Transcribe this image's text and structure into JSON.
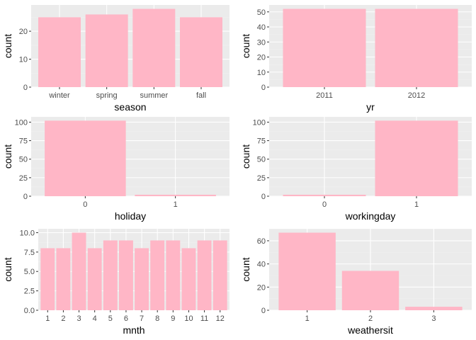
{
  "colors": {
    "bar": "#ffb6c6",
    "panel": "#ebebeb",
    "grid": "#ffffff"
  },
  "chart_data": [
    {
      "type": "bar",
      "categories": [
        "winter",
        "spring",
        "summer",
        "fall"
      ],
      "values": [
        25,
        26,
        28,
        25
      ],
      "xlabel": "season",
      "ylabel": "count",
      "yticks": [
        0,
        10,
        20
      ],
      "ylim": [
        0,
        29.4
      ]
    },
    {
      "type": "bar",
      "categories": [
        "2011",
        "2012"
      ],
      "values": [
        52,
        52
      ],
      "xlabel": "yr",
      "ylabel": "count",
      "yticks": [
        0,
        10,
        20,
        30,
        40,
        50
      ],
      "ylim": [
        0,
        54.6
      ]
    },
    {
      "type": "bar",
      "categories": [
        "0",
        "1"
      ],
      "values": [
        102,
        2
      ],
      "xlabel": "holiday",
      "ylabel": "count",
      "yticks": [
        0,
        25,
        50,
        75,
        100
      ],
      "ylim": [
        0,
        107.1
      ]
    },
    {
      "type": "bar",
      "categories": [
        "0",
        "1"
      ],
      "values": [
        2,
        102
      ],
      "xlabel": "workingday",
      "ylabel": "count",
      "yticks": [
        0,
        25,
        50,
        75,
        100
      ],
      "ylim": [
        0,
        107.1
      ]
    },
    {
      "type": "bar",
      "categories": [
        "1",
        "2",
        "3",
        "4",
        "5",
        "6",
        "7",
        "8",
        "9",
        "10",
        "11",
        "12"
      ],
      "values": [
        8,
        8,
        10,
        8,
        9,
        9,
        8,
        9,
        9,
        8,
        9,
        9
      ],
      "xlabel": "mnth",
      "ylabel": "count",
      "yticks": [
        0.0,
        2.5,
        5.0,
        7.5,
        10.0
      ],
      "ylim": [
        0,
        10.5
      ]
    },
    {
      "type": "bar",
      "categories": [
        "1",
        "2",
        "3"
      ],
      "values": [
        67,
        34,
        3
      ],
      "xlabel": "weathersit",
      "ylabel": "count",
      "yticks": [
        0,
        20,
        40,
        60
      ],
      "ylim": [
        0,
        70.35
      ]
    }
  ]
}
